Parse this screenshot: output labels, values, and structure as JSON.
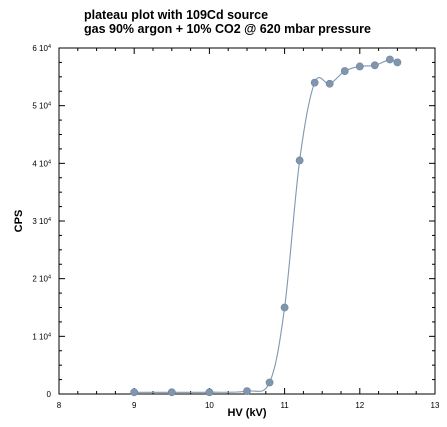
{
  "chart_data": {
    "type": "scatter",
    "title": "plateau plot with 109Cd source",
    "subtitle": "gas 90% argon + 10% CO2 @ 620 mbar pressure",
    "xlabel": "HV (kV)",
    "ylabel": "CPS",
    "xlim": [
      8,
      13
    ],
    "ylim": [
      0,
      60000
    ],
    "x_ticks": [
      "8",
      "9",
      "10",
      "11",
      "12",
      "13"
    ],
    "y_ticks": [
      {
        "value": 0,
        "mantissa": "0",
        "exp": ""
      },
      {
        "value": 10000,
        "mantissa": "1 10",
        "exp": "4"
      },
      {
        "value": 20000,
        "mantissa": "2 10",
        "exp": "4"
      },
      {
        "value": 30000,
        "mantissa": "3 10",
        "exp": "4"
      },
      {
        "value": 40000,
        "mantissa": "4 10",
        "exp": "4"
      },
      {
        "value": 50000,
        "mantissa": "5 10",
        "exp": "4"
      },
      {
        "value": 60000,
        "mantissa": "6 10",
        "exp": "4"
      }
    ],
    "grid": false,
    "colors": {
      "marker": "#8096ad",
      "line": "#7f97b2"
    },
    "series": [
      {
        "x": [
          9.0,
          9.5,
          10.0,
          10.5,
          10.8,
          11.0,
          11.2,
          11.4,
          11.6,
          11.8,
          12.0,
          12.2,
          12.4,
          12.5
        ],
        "y": [
          300,
          300,
          300,
          500,
          2000,
          15000,
          40500,
          54000,
          53800,
          56000,
          56800,
          57000,
          58000,
          57500
        ]
      }
    ]
  }
}
